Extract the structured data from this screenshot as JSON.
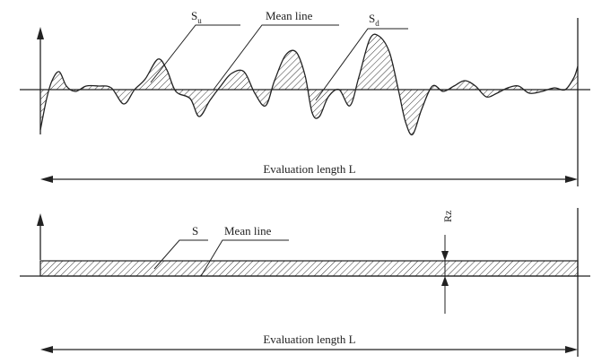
{
  "top_panel": {
    "label_su": "S",
    "label_su_sub": "u",
    "label_mean_line": "Mean line",
    "label_sd": "S",
    "label_sd_sub": "d",
    "evaluation_length": "Evaluation length L"
  },
  "bottom_panel": {
    "label_s": "S",
    "label_mean_line": "Mean line",
    "label_rz": "Rz",
    "evaluation_length": "Evaluation length L"
  },
  "colors": {
    "ink": "#222222",
    "hatch": "#333333",
    "band_fill": "#cfcfcf"
  }
}
